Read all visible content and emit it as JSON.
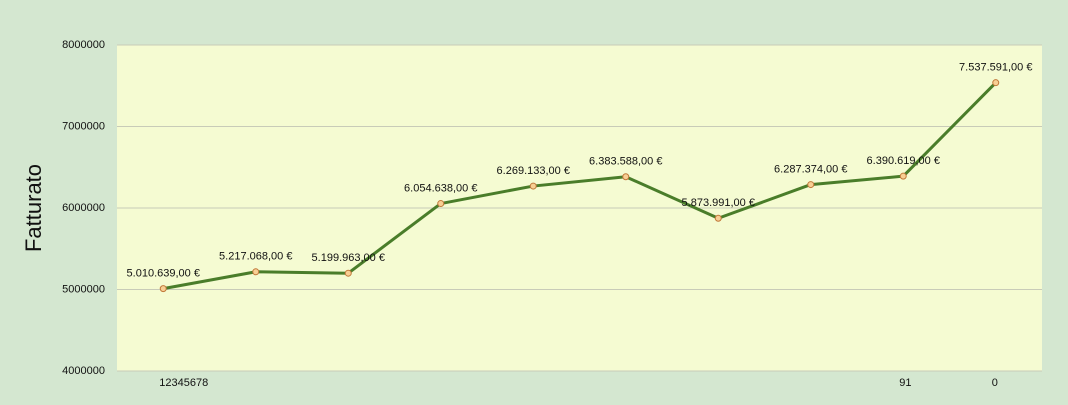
{
  "chart_data": {
    "type": "line",
    "y_label": "Fatturato",
    "categories": [
      "12345678",
      null,
      null,
      null,
      null,
      null,
      null,
      null,
      "91",
      "0"
    ],
    "series": [
      {
        "name": "Fatturato",
        "color": "#4a7d2a",
        "values": [
          5010639,
          5217068,
          5199963,
          6054638,
          6269133,
          6383588,
          5873991,
          6287374,
          6390619,
          7537591
        ],
        "value_labels": [
          "5.010.639,00 €",
          "5.217.068,00 €",
          "5.199.963,00 €",
          "6.054.638,00 €",
          "6.269.133,00 €",
          "6.383.588,00 €",
          "5.873.991,00 €",
          "6.287.374,00 €",
          "6.390.619,00 €",
          "7.537.591,00 €"
        ]
      }
    ],
    "ylim": [
      4000000,
      8000000
    ],
    "yticks": [
      4000000,
      5000000,
      6000000,
      7000000,
      8000000
    ],
    "grid": true
  }
}
